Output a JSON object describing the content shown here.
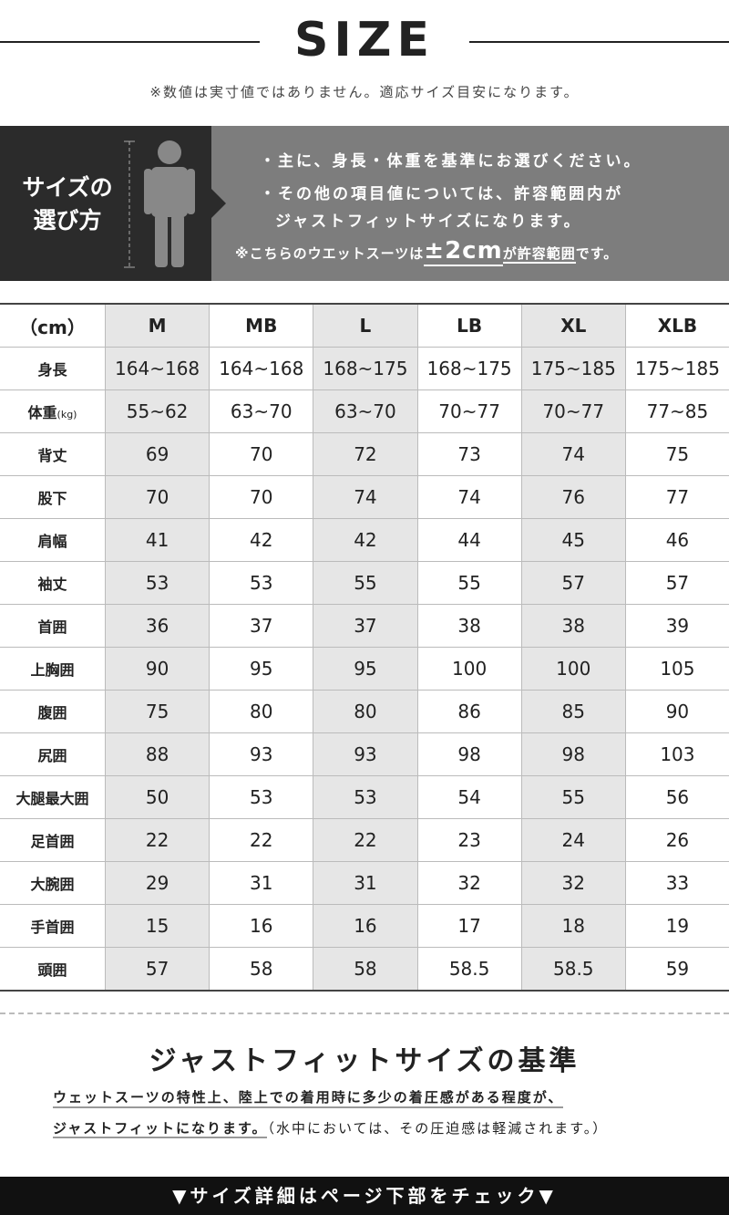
{
  "header": {
    "title": "SIZE",
    "note": "※数値は実寸値ではありません。適応サイズ目安になります。"
  },
  "guide": {
    "label": [
      "サイズの",
      "選び方"
    ],
    "lines": [
      "・主に、身長・体重を基準にお選びください。",
      "・その他の項目値については、許容範囲内が",
      "ジャストフィットサイズになります。"
    ],
    "tolerance": {
      "before": "※こちらのウエットスーツは",
      "amount": "±2cm",
      "middle": "が許容範囲",
      "after": "です。"
    }
  },
  "table": {
    "header": [
      "（cm）",
      "M",
      "MB",
      "L",
      "LB",
      "XL",
      "XLB"
    ],
    "rows": [
      {
        "label": "身長",
        "cells": [
          "164~168",
          "164~168",
          "168~175",
          "168~175",
          "175~185",
          "175~185"
        ]
      },
      {
        "label": "体重",
        "unit": "(kg)",
        "cells": [
          "55~62",
          "63~70",
          "63~70",
          "70~77",
          "70~77",
          "77~85"
        ]
      },
      {
        "label": "背丈",
        "cells": [
          "69",
          "70",
          "72",
          "73",
          "74",
          "75"
        ]
      },
      {
        "label": "股下",
        "cells": [
          "70",
          "70",
          "74",
          "74",
          "76",
          "77"
        ]
      },
      {
        "label": "肩幅",
        "cells": [
          "41",
          "42",
          "42",
          "44",
          "45",
          "46"
        ]
      },
      {
        "label": "袖丈",
        "cells": [
          "53",
          "53",
          "55",
          "55",
          "57",
          "57"
        ]
      },
      {
        "label": "首囲",
        "cells": [
          "36",
          "37",
          "37",
          "38",
          "38",
          "39"
        ]
      },
      {
        "label": "上胸囲",
        "cells": [
          "90",
          "95",
          "95",
          "100",
          "100",
          "105"
        ]
      },
      {
        "label": "腹囲",
        "cells": [
          "75",
          "80",
          "80",
          "86",
          "85",
          "90"
        ]
      },
      {
        "label": "尻囲",
        "cells": [
          "88",
          "93",
          "93",
          "98",
          "98",
          "103"
        ]
      },
      {
        "label": "大腿最大囲",
        "cells": [
          "50",
          "53",
          "53",
          "54",
          "55",
          "56"
        ]
      },
      {
        "label": "足首囲",
        "cells": [
          "22",
          "22",
          "22",
          "23",
          "24",
          "26"
        ]
      },
      {
        "label": "大腕囲",
        "cells": [
          "29",
          "31",
          "31",
          "32",
          "32",
          "33"
        ]
      },
      {
        "label": "手首囲",
        "cells": [
          "15",
          "16",
          "16",
          "17",
          "18",
          "19"
        ]
      },
      {
        "label": "頭囲",
        "cells": [
          "57",
          "58",
          "58",
          "58.5",
          "58.5",
          "59"
        ]
      }
    ]
  },
  "criteria": {
    "title": "ジャストフィットサイズの基準",
    "lines": [
      "ウェットスーツの特性上、陸上での着用時に多少の着圧感がある程度が、",
      "ジャストフィットになります。"
    ],
    "note": "（水中においては、その圧迫感は軽減されます。）"
  },
  "footer": {
    "text": "▼サイズ詳細はページ下部をチェック▼"
  }
}
